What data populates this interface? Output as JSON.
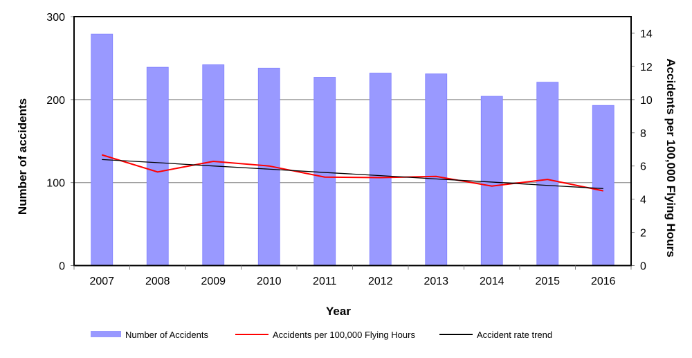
{
  "chart_data": {
    "type": "bar",
    "title": "",
    "xlabel": "Year",
    "ylabel": "Number of accidents",
    "y2label": "Accidents per 100,000 Flying Hours",
    "categories": [
      "2007",
      "2008",
      "2009",
      "2010",
      "2011",
      "2012",
      "2013",
      "2014",
      "2015",
      "2016"
    ],
    "ylim": [
      0,
      300
    ],
    "yticks": [
      0,
      100,
      200,
      300
    ],
    "y2lim": [
      0,
      15
    ],
    "y2ticks": [
      0,
      2,
      4,
      6,
      8,
      10,
      12,
      14
    ],
    "grid": "horizontal at left-axis ticks",
    "legend_position": "bottom",
    "series": [
      {
        "name": "Number of Accidents",
        "type": "bar",
        "axis": "left",
        "color": "#9999ff",
        "values": [
          279,
          239,
          242,
          238,
          227,
          232,
          231,
          204,
          221,
          193
        ]
      },
      {
        "name": "Accidents per 100,000 Flying Hours",
        "type": "line",
        "axis": "right",
        "color": "#ff0000",
        "values": [
          6.67,
          5.64,
          6.28,
          6.0,
          5.33,
          5.3,
          5.37,
          4.79,
          5.19,
          4.5
        ]
      },
      {
        "name": "Accident rate trend",
        "type": "line",
        "axis": "right",
        "color": "#000000",
        "values": [
          6.39,
          6.2,
          6.0,
          5.81,
          5.61,
          5.42,
          5.22,
          5.03,
          4.83,
          4.64
        ]
      }
    ]
  }
}
